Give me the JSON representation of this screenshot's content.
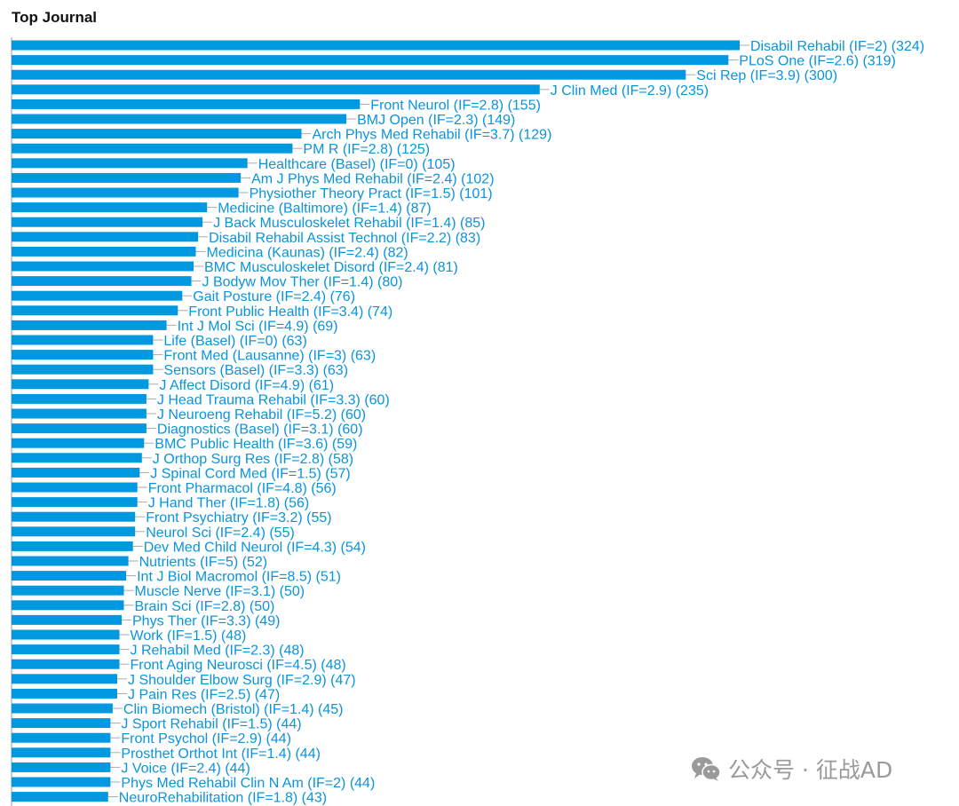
{
  "chart_data": {
    "type": "bar",
    "orientation": "horizontal",
    "title": "Top Journal",
    "bar_color": "#0099e0",
    "label_color": "#0a94dc",
    "xlim": [
      0,
      324
    ],
    "grid": false,
    "categories": [
      "Disabil Rehabil (IF=2) (324)",
      "PLoS One (IF=2.6) (319)",
      "Sci Rep (IF=3.9) (300)",
      "J Clin Med (IF=2.9) (235)",
      "Front Neurol (IF=2.8) (155)",
      "BMJ Open (IF=2.3) (149)",
      "Arch Phys Med Rehabil (IF=3.7) (129)",
      "PM R (IF=2.8) (125)",
      "Healthcare (Basel) (IF=0) (105)",
      "Am J Phys Med Rehabil (IF=2.4) (102)",
      "Physiother Theory Pract (IF=1.5) (101)",
      "Medicine (Baltimore) (IF=1.4) (87)",
      "J Back Musculoskelet Rehabil (IF=1.4) (85)",
      "Disabil Rehabil Assist Technol (IF=2.2) (83)",
      "Medicina (Kaunas) (IF=2.4) (82)",
      "BMC Musculoskelet Disord (IF=2.4) (81)",
      "J Bodyw Mov Ther (IF=1.4) (80)",
      "Gait Posture (IF=2.4) (76)",
      "Front Public Health (IF=3.4) (74)",
      "Int J Mol Sci (IF=4.9) (69)",
      "Life (Basel) (IF=0) (63)",
      "Front Med (Lausanne) (IF=3) (63)",
      "Sensors (Basel) (IF=3.3) (63)",
      "J Affect Disord (IF=4.9) (61)",
      "J Head Trauma Rehabil (IF=3.3) (60)",
      "J Neuroeng Rehabil (IF=5.2) (60)",
      "Diagnostics (Basel) (IF=3.1) (60)",
      "BMC Public Health (IF=3.6) (59)",
      "J Orthop Surg Res (IF=2.8) (58)",
      "J Spinal Cord Med (IF=1.5) (57)",
      "Front Pharmacol (IF=4.8) (56)",
      "J Hand Ther (IF=1.8) (56)",
      "Front Psychiatry (IF=3.2) (55)",
      "Neurol Sci (IF=2.4) (55)",
      "Dev Med Child Neurol (IF=4.3) (54)",
      "Nutrients (IF=5) (52)",
      "Int J Biol Macromol (IF=8.5) (51)",
      "Muscle Nerve (IF=3.1) (50)",
      "Brain Sci (IF=2.8) (50)",
      "Phys Ther (IF=3.3) (49)",
      "Work (IF=1.5) (48)",
      "J Rehabil Med (IF=2.3) (48)",
      "Front Aging Neurosci (IF=4.5) (48)",
      "J Shoulder Elbow Surg (IF=2.9) (47)",
      "J Pain Res (IF=2.5) (47)",
      "Clin Biomech (Bristol) (IF=1.4) (45)",
      "J Sport Rehabil (IF=1.5) (44)",
      "Front Psychol (IF=2.9) (44)",
      "Prosthet Orthot Int (IF=1.4) (44)",
      "J Voice (IF=2.4) (44)",
      "Phys Med Rehabil Clin N Am (IF=2) (44)",
      "NeuroRehabilitation (IF=1.8) (43)"
    ],
    "values": [
      324,
      319,
      300,
      235,
      155,
      149,
      129,
      125,
      105,
      102,
      101,
      87,
      85,
      83,
      82,
      81,
      80,
      76,
      74,
      69,
      63,
      63,
      63,
      61,
      60,
      60,
      60,
      59,
      58,
      57,
      56,
      56,
      55,
      55,
      54,
      52,
      51,
      50,
      50,
      49,
      48,
      48,
      48,
      47,
      47,
      45,
      44,
      44,
      44,
      44,
      44,
      43
    ]
  },
  "watermark": {
    "icon": "wechat-icon",
    "text": "公众号 · 征战AD"
  }
}
